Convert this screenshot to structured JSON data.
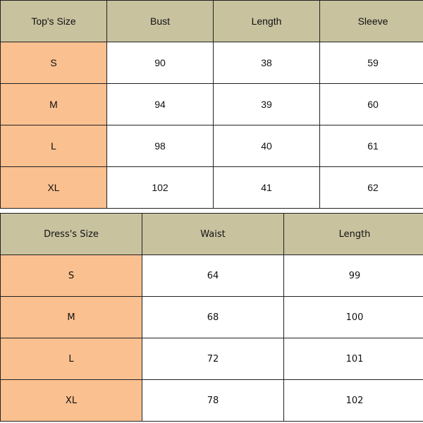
{
  "tops": {
    "headers": [
      "Top's Size",
      "Bust",
      "Length",
      "Sleeve"
    ],
    "rows": [
      [
        "S",
        "90",
        "38",
        "59"
      ],
      [
        "M",
        "94",
        "39",
        "60"
      ],
      [
        "L",
        "98",
        "40",
        "61"
      ],
      [
        "XL",
        "102",
        "41",
        "62"
      ]
    ]
  },
  "dresses": {
    "headers": [
      "Dress's Size",
      "Waist",
      "Length"
    ],
    "rows": [
      [
        "S",
        "64",
        "99"
      ],
      [
        "M",
        "68",
        "100"
      ],
      [
        "L",
        "72",
        "101"
      ],
      [
        "XL",
        "78",
        "102"
      ]
    ]
  },
  "colors": {
    "header": "#c8c29f",
    "size_column": "#fbc08f"
  }
}
